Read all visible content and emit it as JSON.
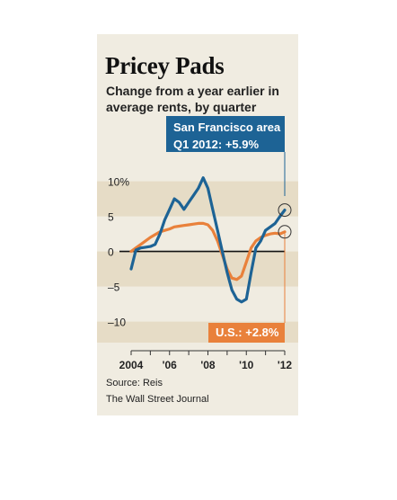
{
  "title": "Pricey Pads",
  "subtitle": "Change from a year earlier in average rents, by quarter",
  "source": "Source: Reis",
  "credit": "The Wall Street Journal",
  "colors": {
    "sf": "#1d6395",
    "us": "#e9813b",
    "band": "#e6dcc6",
    "panel": "#f0ece1"
  },
  "chart_data": {
    "type": "line",
    "ylim": [
      -13,
      12
    ],
    "xlim": [
      2004,
      2012.35
    ],
    "y_ticks": [
      {
        "value": 10,
        "label": "10%"
      },
      {
        "value": 5,
        "label": "5"
      },
      {
        "value": 0,
        "label": "0"
      },
      {
        "value": -5,
        "label": "–5"
      },
      {
        "value": -10,
        "label": "–10"
      }
    ],
    "x_ticks": [
      {
        "value": 2004,
        "label": "2004"
      },
      {
        "value": 2006,
        "label": "'06"
      },
      {
        "value": 2008,
        "label": "'08"
      },
      {
        "value": 2010,
        "label": "'10"
      },
      {
        "value": 2012,
        "label": "'12"
      }
    ],
    "series": [
      {
        "name": "San Francisco area",
        "callout": "San Francisco area Q1 2012: +5.9%",
        "callout_line1": "San Francisco area",
        "callout_line2": "Q1 2012:  +5.9%",
        "x": [
          2004.0,
          2004.25,
          2004.5,
          2004.75,
          2005.0,
          2005.25,
          2005.5,
          2005.75,
          2006.0,
          2006.25,
          2006.5,
          2006.75,
          2007.0,
          2007.25,
          2007.5,
          2007.75,
          2008.0,
          2008.25,
          2008.5,
          2008.75,
          2009.0,
          2009.25,
          2009.5,
          2009.75,
          2010.0,
          2010.25,
          2010.5,
          2010.75,
          2011.0,
          2011.25,
          2011.5,
          2011.75,
          2012.0
        ],
        "values": [
          -2.5,
          0.2,
          0.5,
          0.6,
          0.7,
          1.0,
          2.5,
          4.5,
          6.0,
          7.5,
          7.0,
          6.0,
          7.0,
          8.0,
          9.0,
          10.5,
          9.0,
          6.0,
          3.0,
          0.0,
          -3.0,
          -5.5,
          -6.8,
          -7.2,
          -6.8,
          -3.0,
          0.5,
          1.5,
          3.0,
          3.5,
          4.0,
          5.0,
          5.9
        ]
      },
      {
        "name": "U.S.",
        "callout": "U.S.: +2.8%",
        "x": [
          2004.0,
          2004.25,
          2004.5,
          2004.75,
          2005.0,
          2005.25,
          2005.5,
          2005.75,
          2006.0,
          2006.25,
          2006.5,
          2006.75,
          2007.0,
          2007.25,
          2007.5,
          2007.75,
          2008.0,
          2008.25,
          2008.5,
          2008.75,
          2009.0,
          2009.25,
          2009.5,
          2009.75,
          2010.0,
          2010.25,
          2010.5,
          2010.75,
          2011.0,
          2011.25,
          2011.5,
          2011.75,
          2012.0
        ],
        "values": [
          0.0,
          0.5,
          1.0,
          1.5,
          2.0,
          2.4,
          2.8,
          3.0,
          3.2,
          3.5,
          3.6,
          3.7,
          3.8,
          3.9,
          4.0,
          4.0,
          3.8,
          3.0,
          1.5,
          -0.5,
          -2.5,
          -3.8,
          -4.0,
          -3.5,
          -1.5,
          0.5,
          1.5,
          2.0,
          2.3,
          2.5,
          2.6,
          2.5,
          2.8
        ]
      }
    ],
    "bands": [
      [
        5,
        10
      ],
      [
        -5,
        0
      ],
      [
        -15,
        -10
      ]
    ],
    "grid": false,
    "legend": "none"
  }
}
